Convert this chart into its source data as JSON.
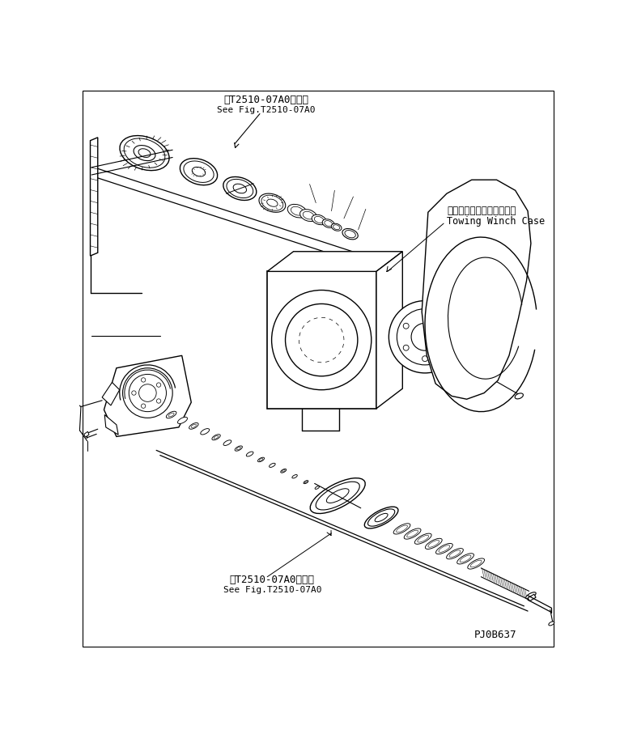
{
  "bg_color": "#ffffff",
  "line_color": "#000000",
  "title_jp_top": "第T2510-07A0図参照",
  "title_en_top": "See Fig.T2510-07A0",
  "title_jp_bot": "第T2510-07A0図参照",
  "title_en_bot": "See Fig.T2510-07A0",
  "label_winch_jp": "トーインダウィンチケース",
  "label_winch_en": "Towing Winch Case",
  "part_number": "PJ0B637",
  "fig_width": 7.66,
  "fig_height": 9.02,
  "dpi": 100
}
